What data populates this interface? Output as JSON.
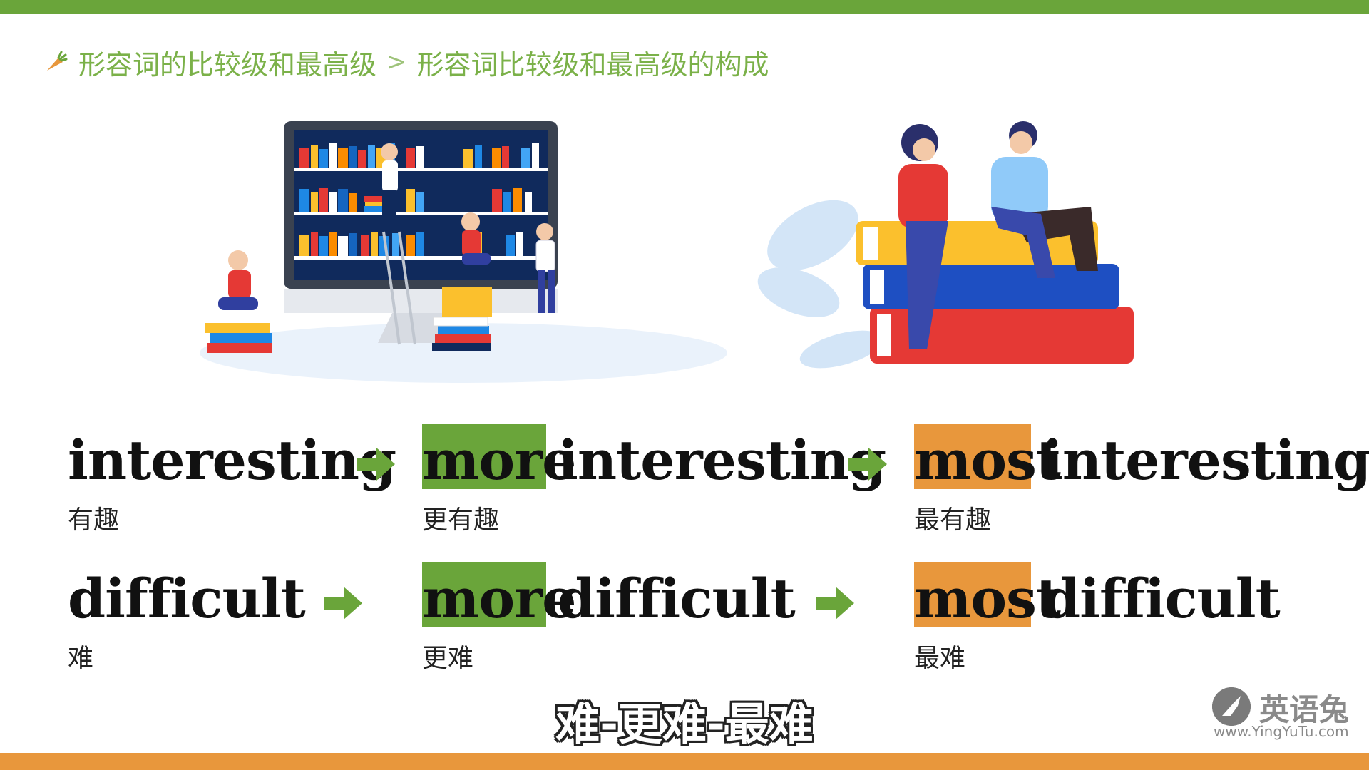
{
  "breadcrumb": {
    "section": "形容词的比较级和最高级",
    "separator": ">",
    "topic": "形容词比较级和最高级的构成"
  },
  "rows": [
    {
      "base": "interesting",
      "base_cn": "有趣",
      "comparative_prefix": "more",
      "comparative_word": "interesting",
      "comparative_cn": "更有趣",
      "superlative_prefix": "most",
      "superlative_word": "interesting",
      "superlative_cn": "最有趣"
    },
    {
      "base": "difficult",
      "base_cn": "难",
      "comparative_prefix": "more",
      "comparative_word": "difficult",
      "comparative_cn": "更难",
      "superlative_prefix": "most",
      "superlative_word": "difficult",
      "superlative_cn": "最难"
    }
  ],
  "subtitle": "难-更难-最难",
  "brand": {
    "name": "英语兔",
    "url": "www.YingYuTu.com"
  },
  "colors": {
    "green": "#6aa53a",
    "orange": "#e8973c"
  },
  "icons": [
    "carrot-icon",
    "arrow-right-icon",
    "rabbit-logo-icon"
  ]
}
